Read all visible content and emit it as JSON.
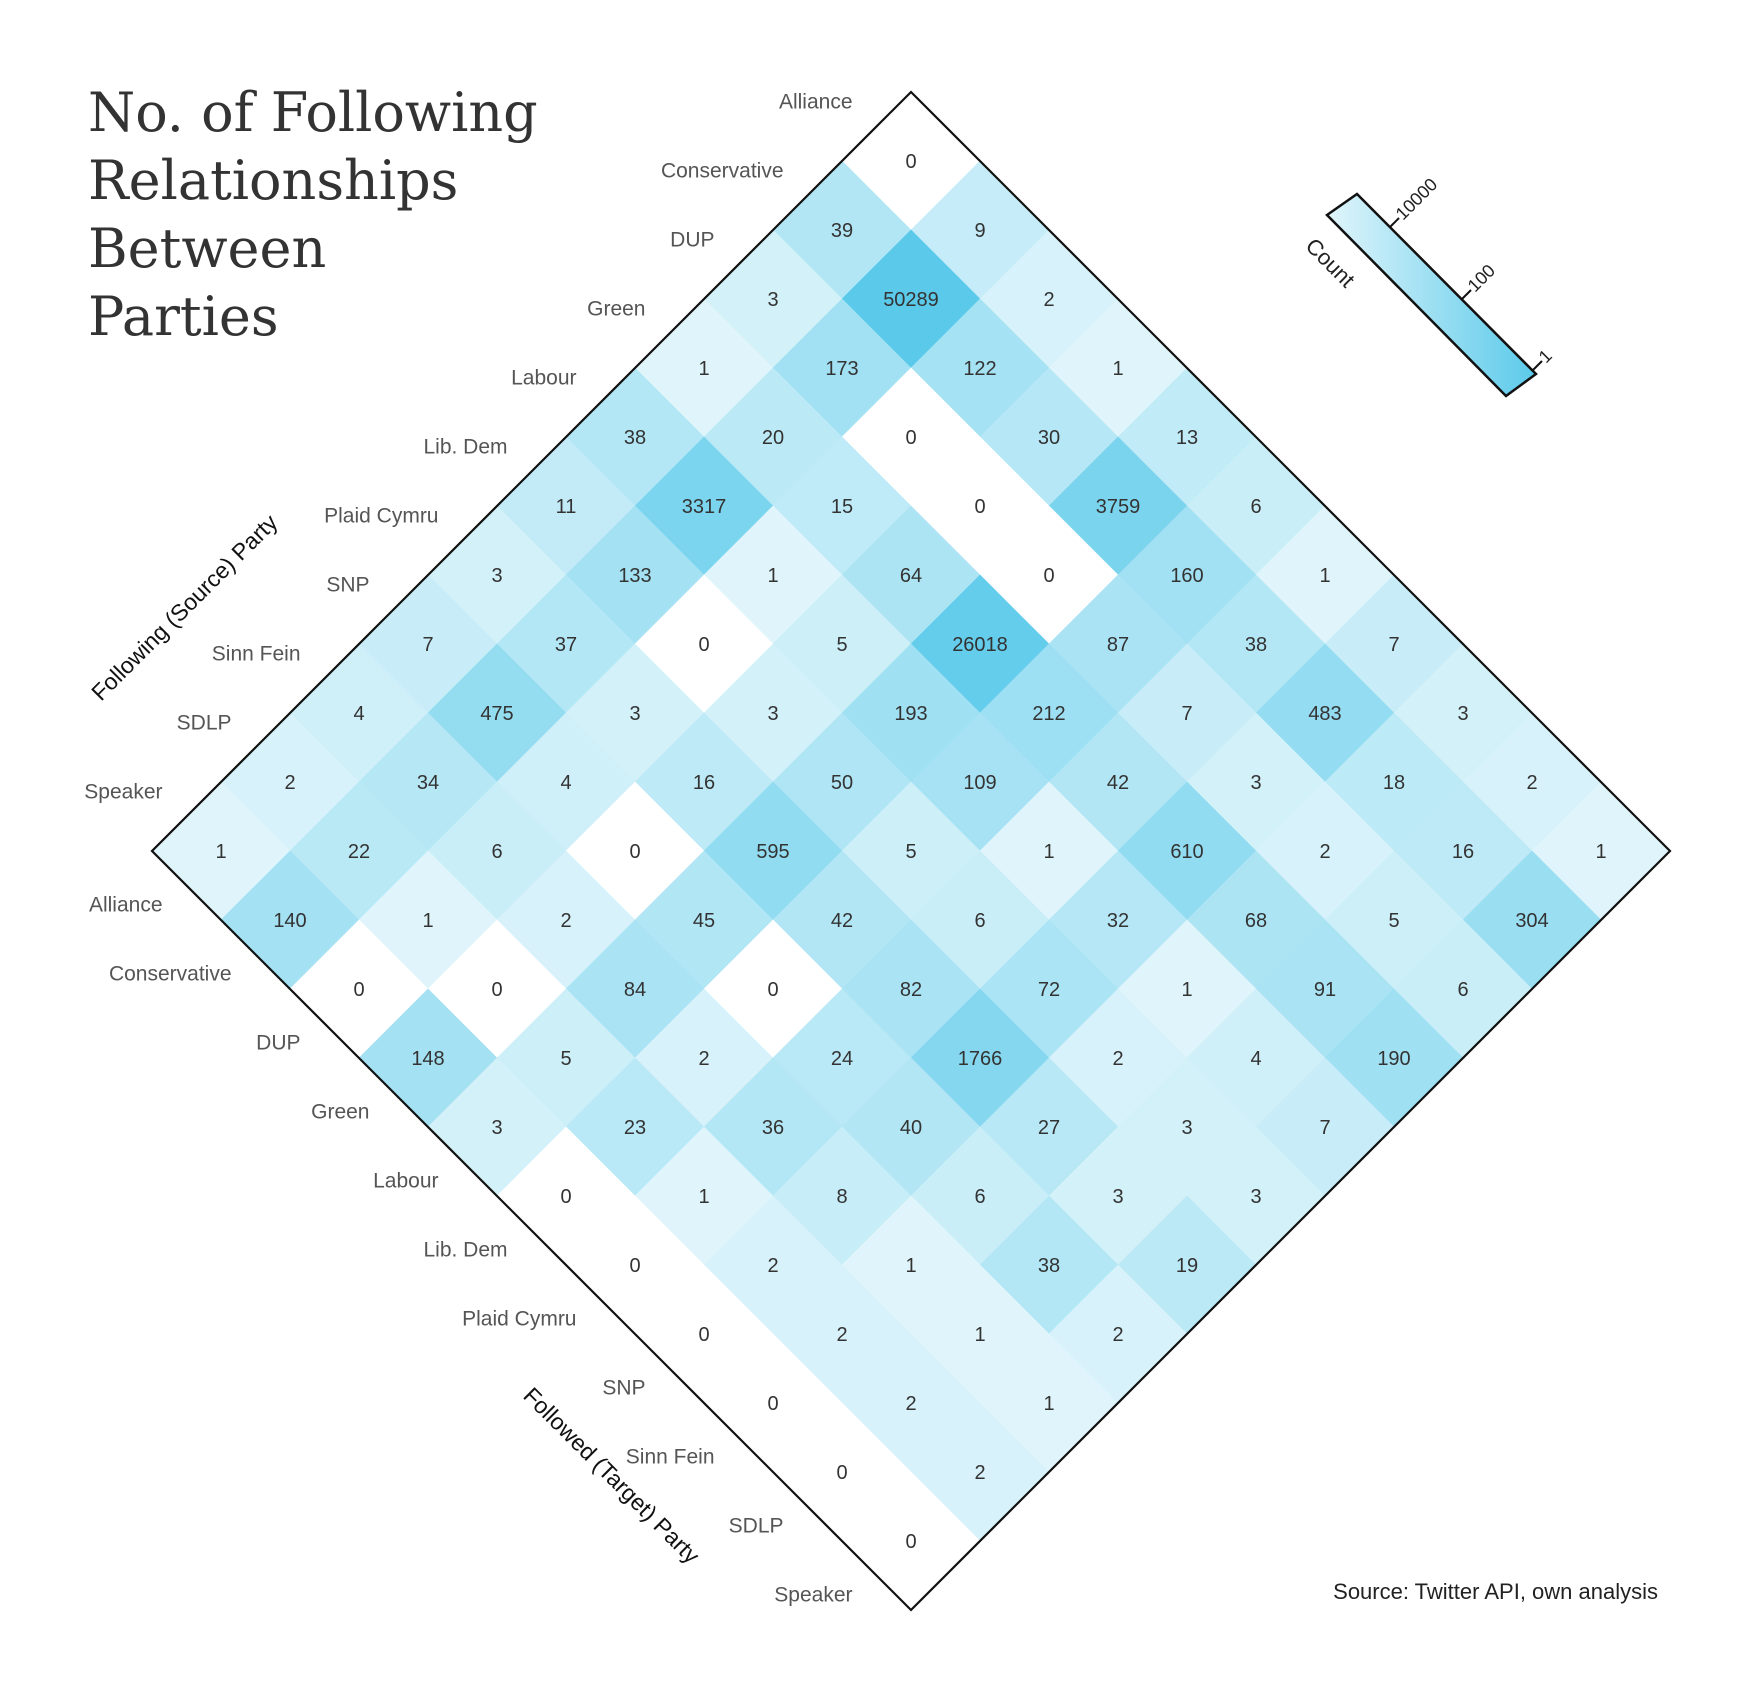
{
  "chart_data": {
    "type": "heatmap",
    "title": "No. of Following Relationships Between Parties",
    "title_lines": [
      "No. of Following",
      "Relationships",
      "Between",
      "Parties"
    ],
    "source_axis_title": "Following (Source) Party",
    "target_axis_title": "Followed (Target) Party",
    "source_parties": [
      "Alliance",
      "Conservative",
      "DUP",
      "Green",
      "Labour",
      "Lib. Dem",
      "Plaid Cymru",
      "SNP",
      "Sinn Fein",
      "SDLP",
      "Speaker"
    ],
    "target_parties": [
      "Alliance",
      "Conservative",
      "DUP",
      "Green",
      "Labour",
      "Lib. Dem",
      "Plaid Cymru",
      "SNP",
      "Sinn Fein",
      "SDLP",
      "Speaker"
    ],
    "values": [
      [
        0,
        39,
        3,
        1,
        38,
        11,
        3,
        7,
        4,
        2,
        1
      ],
      [
        9,
        50289,
        173,
        20,
        3317,
        133,
        37,
        475,
        34,
        22,
        140
      ],
      [
        2,
        122,
        0,
        15,
        1,
        0,
        3,
        4,
        6,
        1,
        0
      ],
      [
        1,
        30,
        0,
        64,
        5,
        3,
        16,
        0,
        2,
        0,
        148
      ],
      [
        13,
        3759,
        0,
        26018,
        193,
        50,
        595,
        45,
        84,
        5,
        3
      ],
      [
        6,
        160,
        87,
        212,
        109,
        5,
        42,
        0,
        2,
        23,
        0
      ],
      [
        1,
        38,
        7,
        42,
        1,
        6,
        82,
        24,
        36,
        1,
        0
      ],
      [
        7,
        483,
        3,
        610,
        32,
        72,
        1766,
        40,
        8,
        2,
        0
      ],
      [
        3,
        18,
        2,
        68,
        1,
        2,
        27,
        6,
        1,
        2,
        0
      ],
      [
        2,
        16,
        5,
        91,
        4,
        3,
        3,
        38,
        1,
        2,
        0
      ],
      [
        1,
        304,
        6,
        190,
        7,
        3,
        19,
        2,
        1,
        2,
        0
      ]
    ],
    "color_scale": {
      "type": "log",
      "min": 1,
      "max": 50289,
      "low_color": "#e0f5fb",
      "high_color": "#5bcaea",
      "zero_color": "#ffffff"
    },
    "legend": {
      "title": "Count",
      "ticks": [
        "1",
        "100",
        "10000"
      ],
      "placement": "top-right"
    },
    "source_note": "Source: Twitter API, own analysis"
  }
}
